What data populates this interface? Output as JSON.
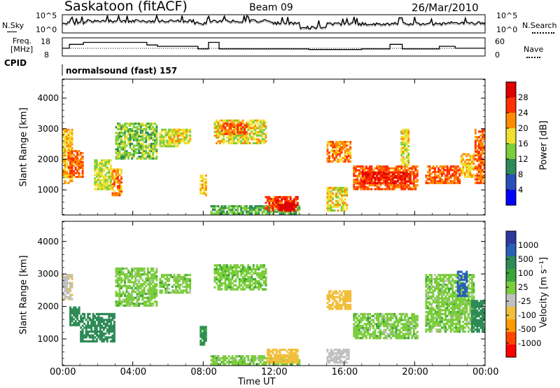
{
  "header": {
    "radar_title": "Saskatoon (fitACF)",
    "beam": "Beam 09",
    "date": "26/Mar/2010"
  },
  "top_panels": {
    "nsky_label": "N.Sky",
    "nsearch_label": "N.Search",
    "nsky_ticks": [
      "10^5",
      "10^0"
    ],
    "nsearch_ticks": [
      "10^5",
      "10^0"
    ],
    "freq_label_line1": "Freq.",
    "freq_label_line2": "[MHz]",
    "freq_ticks": [
      "18",
      "8"
    ],
    "nave_label": "Nave",
    "nave_ticks": [
      "60",
      "0"
    ],
    "cpid_label": "CPID",
    "cpid_text": "normalsound (fast) 157",
    "freq_steps": [
      {
        "t0": 0.0,
        "t1": 0.4,
        "freq": 12
      },
      {
        "t0": 0.4,
        "t1": 1.2,
        "freq": 15
      },
      {
        "t0": 1.2,
        "t1": 4.8,
        "freq": 16.5
      },
      {
        "t0": 4.8,
        "t1": 5.4,
        "freq": 14.5
      },
      {
        "t0": 5.4,
        "t1": 7.7,
        "freq": 13.5
      },
      {
        "t0": 7.7,
        "t1": 8.3,
        "freq": 11.5
      },
      {
        "t0": 8.3,
        "t1": 8.9,
        "freq": 16.5
      },
      {
        "t0": 8.9,
        "t1": 14.0,
        "freq": 11.5
      },
      {
        "t0": 14.0,
        "t1": 17.0,
        "freq": 11
      },
      {
        "t0": 17.0,
        "t1": 18.6,
        "freq": 11.5
      },
      {
        "t0": 18.6,
        "t1": 19.3,
        "freq": 15
      },
      {
        "t0": 19.3,
        "t1": 21.4,
        "freq": 11.5
      },
      {
        "t0": 21.4,
        "t1": 22.3,
        "freq": 13.5
      },
      {
        "t0": 22.3,
        "t1": 24.0,
        "freq": 12
      }
    ]
  },
  "chart_data": [
    {
      "type": "heatmap",
      "ylabel": "Slant Range [km]",
      "xlabel": "Time UT",
      "xticks": [
        "00:00",
        "04:00",
        "08:00",
        "12:00",
        "16:00",
        "20:00",
        "00:00"
      ],
      "xlim": [
        0,
        24
      ],
      "yticks": [
        "1000",
        "2000",
        "3000",
        "4000"
      ],
      "ylim": [
        180,
        4620
      ],
      "colorbar": {
        "label": "Power [dB]",
        "ticks": [
          "4",
          "8",
          "12",
          "16",
          "20",
          "24",
          "28"
        ],
        "colors": [
          "#0000ff",
          "#2a4fb8",
          "#2e8b57",
          "#7ccd3c",
          "#f0e030",
          "#ff8c00",
          "#ff3000",
          "#e00000"
        ]
      },
      "regions": [
        {
          "t0": 0.0,
          "t1": 0.6,
          "r0": 1200,
          "r1": 3000,
          "value": 18
        },
        {
          "t0": 0.3,
          "t1": 1.2,
          "r0": 1400,
          "r1": 2300,
          "value": 22
        },
        {
          "t0": 1.8,
          "t1": 2.8,
          "r0": 1000,
          "r1": 2000,
          "value": 14
        },
        {
          "t0": 2.8,
          "t1": 3.4,
          "r0": 800,
          "r1": 1700,
          "value": 20
        },
        {
          "t0": 3.0,
          "t1": 5.4,
          "r0": 2000,
          "r1": 3200,
          "value": 12
        },
        {
          "t0": 5.5,
          "t1": 6.6,
          "r0": 2400,
          "r1": 3000,
          "value": 14
        },
        {
          "t0": 6.0,
          "t1": 7.3,
          "r0": 2500,
          "r1": 3000,
          "value": 16
        },
        {
          "t0": 7.8,
          "t1": 8.2,
          "r0": 800,
          "r1": 1500,
          "value": 18
        },
        {
          "t0": 8.6,
          "t1": 11.6,
          "r0": 2500,
          "r1": 3300,
          "value": 16
        },
        {
          "t0": 9.0,
          "t1": 10.5,
          "r0": 2800,
          "r1": 3200,
          "value": 22
        },
        {
          "t0": 8.4,
          "t1": 13.5,
          "r0": 200,
          "r1": 500,
          "value": 10
        },
        {
          "t0": 11.5,
          "t1": 13.4,
          "r0": 300,
          "r1": 800,
          "value": 24
        },
        {
          "t0": 12.3,
          "t1": 13.2,
          "r0": 300,
          "r1": 600,
          "value": 30
        },
        {
          "t0": 15.0,
          "t1": 16.2,
          "r0": 300,
          "r1": 1100,
          "value": 16
        },
        {
          "t0": 15.0,
          "t1": 16.4,
          "r0": 1900,
          "r1": 2600,
          "value": 20
        },
        {
          "t0": 16.5,
          "t1": 20.2,
          "r0": 1000,
          "r1": 1800,
          "value": 22
        },
        {
          "t0": 17.0,
          "t1": 19.8,
          "r0": 1200,
          "r1": 1600,
          "value": 26
        },
        {
          "t0": 20.6,
          "t1": 22.6,
          "r0": 1200,
          "r1": 1800,
          "value": 22
        },
        {
          "t0": 22.6,
          "t1": 23.4,
          "r0": 1400,
          "r1": 2200,
          "value": 18
        },
        {
          "t0": 23.4,
          "t1": 24.0,
          "r0": 1200,
          "r1": 3000,
          "value": 22
        },
        {
          "t0": 19.2,
          "t1": 19.7,
          "r0": 1800,
          "r1": 3000,
          "value": 16
        }
      ]
    },
    {
      "type": "heatmap",
      "ylabel": "Slant Range [km]",
      "xlabel": "Time UT",
      "xticks": [
        "00:00",
        "04:00",
        "08:00",
        "12:00",
        "16:00",
        "20:00",
        "00:00"
      ],
      "xlim": [
        0,
        24
      ],
      "yticks": [
        "1000",
        "2000",
        "3000",
        "4000"
      ],
      "ylim": [
        180,
        4620
      ],
      "colorbar": {
        "label": "Velocity [m s⁻¹]",
        "ticks": [
          "1000",
          "500",
          "100",
          "25",
          "-25",
          "-100",
          "-500",
          "-1000"
        ],
        "colors": [
          "#ff0000",
          "#ff4500",
          "#ff9a00",
          "#f2bf3c",
          "#c0c0c0",
          "#7ccd3c",
          "#3aa53a",
          "#2e8b57",
          "#2a5fb8",
          "#2c3aa0"
        ]
      },
      "regions": [
        {
          "t0": 0.0,
          "t1": 0.6,
          "r0": 2200,
          "r1": 3000,
          "value": -80
        },
        {
          "t0": 0.4,
          "t1": 1.0,
          "r0": 1400,
          "r1": 2000,
          "value": 150
        },
        {
          "t0": 1.0,
          "t1": 3.0,
          "r0": 900,
          "r1": 1800,
          "value": 200
        },
        {
          "t0": 3.0,
          "t1": 5.4,
          "r0": 2000,
          "r1": 3200,
          "value": 0
        },
        {
          "t0": 5.5,
          "t1": 7.3,
          "r0": 2400,
          "r1": 3000,
          "value": 0
        },
        {
          "t0": 7.8,
          "t1": 8.2,
          "r0": 800,
          "r1": 1400,
          "value": 120
        },
        {
          "t0": 8.6,
          "t1": 11.6,
          "r0": 2500,
          "r1": 3300,
          "value": 5
        },
        {
          "t0": 8.4,
          "t1": 13.5,
          "r0": 200,
          "r1": 500,
          "value": 0
        },
        {
          "t0": 11.6,
          "t1": 13.4,
          "r0": 250,
          "r1": 700,
          "value": -150
        },
        {
          "t0": 15.0,
          "t1": 16.3,
          "r0": 250,
          "r1": 700,
          "value": -60
        },
        {
          "t0": 15.0,
          "t1": 16.4,
          "r0": 1900,
          "r1": 2500,
          "value": -300
        },
        {
          "t0": 16.5,
          "t1": 20.2,
          "r0": 1000,
          "r1": 1800,
          "value": 0
        },
        {
          "t0": 20.6,
          "t1": 23.4,
          "r0": 1200,
          "r1": 3000,
          "value": 0
        },
        {
          "t0": 23.2,
          "t1": 24.0,
          "r0": 1200,
          "r1": 2200,
          "value": 200
        },
        {
          "t0": 22.4,
          "t1": 23.0,
          "r0": 2300,
          "r1": 3100,
          "value": 600
        }
      ]
    }
  ]
}
